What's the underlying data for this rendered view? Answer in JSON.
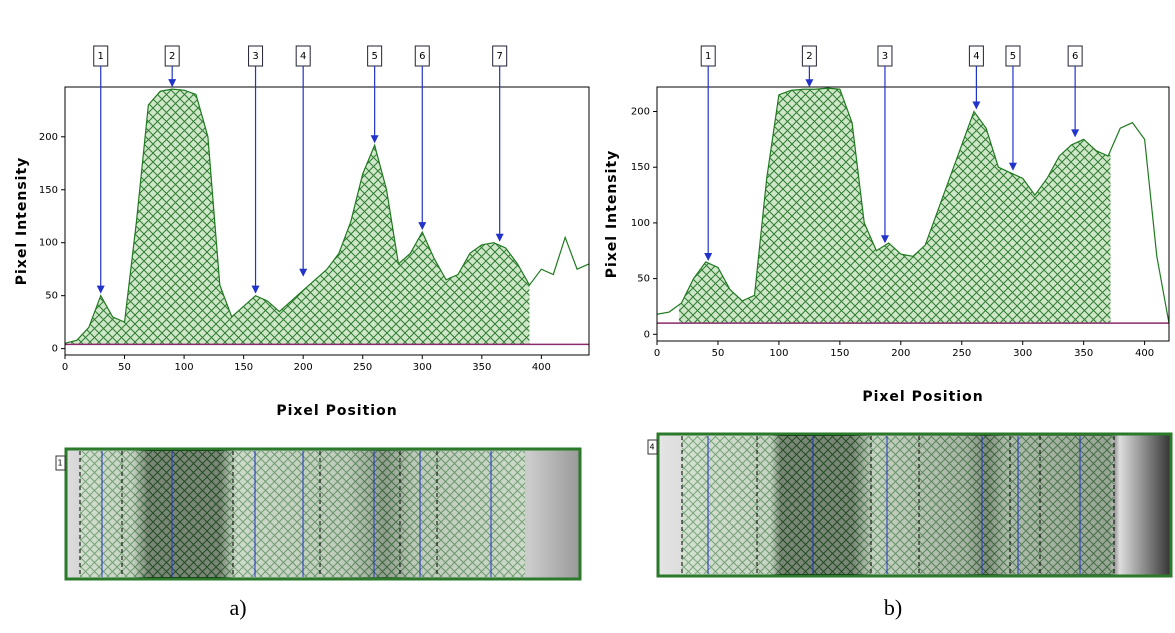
{
  "chart_data": [
    {
      "type": "area",
      "y_label": "Pixel Intensity",
      "x_label": "Pixel Position",
      "caption": "a)",
      "lane_label": "1",
      "x": [
        0,
        10,
        20,
        30,
        40,
        50,
        60,
        70,
        80,
        90,
        100,
        110,
        120,
        130,
        140,
        150,
        160,
        170,
        180,
        190,
        200,
        210,
        220,
        230,
        240,
        250,
        260,
        270,
        280,
        290,
        300,
        310,
        320,
        330,
        340,
        350,
        360,
        370,
        380,
        390,
        400,
        410,
        420,
        430,
        440
      ],
      "values": [
        5,
        8,
        20,
        50,
        30,
        25,
        120,
        230,
        243,
        245,
        244,
        240,
        200,
        60,
        30,
        40,
        50,
        45,
        35,
        45,
        55,
        65,
        75,
        90,
        120,
        165,
        192,
        150,
        80,
        90,
        110,
        85,
        65,
        70,
        90,
        98,
        100,
        95,
        80,
        60,
        75,
        70,
        105,
        75,
        80
      ],
      "color": "#1f7a1f",
      "shaded_xrange": [
        5,
        390
      ],
      "baseline": 4,
      "baseline_color": "#8b2a6b",
      "xlim": [
        0,
        440
      ],
      "ylim": [
        -6,
        247
      ],
      "xticks": [
        0,
        50,
        100,
        150,
        200,
        250,
        300,
        350,
        400
      ],
      "yticks": [
        0,
        50,
        100,
        150,
        200
      ],
      "annotations": [
        {
          "label": "1",
          "x": 30,
          "y": 50
        },
        {
          "label": "2",
          "x": 90,
          "y": 245
        },
        {
          "label": "3",
          "x": 160,
          "y": 50
        },
        {
          "label": "4",
          "x": 200,
          "y": 66
        },
        {
          "label": "5",
          "x": 260,
          "y": 192
        },
        {
          "label": "6",
          "x": 300,
          "y": 110
        },
        {
          "label": "7",
          "x": 365,
          "y": 99
        }
      ]
    },
    {
      "type": "area",
      "y_label": "Pixel Intensity",
      "x_label": "Pixel Position",
      "caption": "b)",
      "lane_label": "4",
      "x": [
        0,
        10,
        20,
        30,
        40,
        50,
        60,
        70,
        80,
        90,
        100,
        110,
        120,
        130,
        140,
        150,
        160,
        170,
        180,
        190,
        200,
        210,
        220,
        230,
        240,
        250,
        260,
        270,
        280,
        290,
        300,
        310,
        320,
        330,
        340,
        350,
        360,
        370,
        380,
        390,
        400,
        410,
        420
      ],
      "values": [
        18,
        20,
        28,
        50,
        65,
        60,
        40,
        30,
        35,
        140,
        215,
        219,
        220,
        220,
        221,
        220,
        190,
        100,
        75,
        82,
        72,
        70,
        80,
        110,
        140,
        170,
        200,
        185,
        150,
        145,
        140,
        125,
        140,
        160,
        170,
        175,
        165,
        160,
        185,
        190,
        175,
        70,
        10
      ],
      "color": "#1f7a1f",
      "shaded_xrange": [
        18,
        372
      ],
      "baseline": 10,
      "baseline_color": "#8b2a6b",
      "xlim": [
        0,
        420
      ],
      "ylim": [
        -6,
        222
      ],
      "xticks": [
        0,
        50,
        100,
        150,
        200,
        250,
        300,
        350,
        400
      ],
      "yticks": [
        0,
        50,
        100,
        150,
        200
      ],
      "annotations": [
        {
          "label": "1",
          "x": 42,
          "y": 64
        },
        {
          "label": "2",
          "x": 125,
          "y": 220
        },
        {
          "label": "3",
          "x": 187,
          "y": 80
        },
        {
          "label": "4",
          "x": 262,
          "y": 200
        },
        {
          "label": "5",
          "x": 292,
          "y": 145
        },
        {
          "label": "6",
          "x": 343,
          "y": 175
        }
      ]
    }
  ]
}
